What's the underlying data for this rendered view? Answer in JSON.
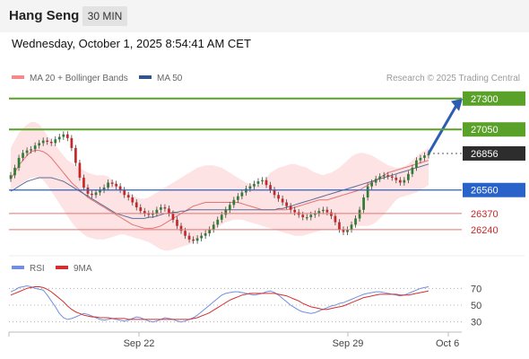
{
  "header": {
    "title": "Hang Seng",
    "interval": "30 MIN"
  },
  "datetime": "Wednesday, October 1, 2025 8:54:41 AM CET",
  "legend": {
    "ma20_bb": "MA 20 + Bollinger Bands",
    "ma50": "MA 50",
    "rsi": "RSI",
    "ma9": "9MA"
  },
  "copyright": "Research © 2025 Trading Central",
  "colors": {
    "up": "#2e7d32",
    "down": "#c62828",
    "resistance": "#5aa12a",
    "pivot": "#2962c8",
    "support": "#e57373",
    "bollinger": "#fde3e3",
    "ma20": "#e57373",
    "ma50": "#5b6e9a",
    "rsi": "#6f8fe0",
    "rsi_ma": "#d32f2f",
    "arrow": "#2b5db0"
  },
  "chart_data": [
    {
      "type": "candlestick",
      "ylim": [
        26050,
        27400
      ],
      "x_ticks": [
        "Sep 22",
        "Sep 29",
        "Oct 6"
      ],
      "levels": [
        {
          "value": 27300,
          "label": "27300",
          "kind": "resistance"
        },
        {
          "value": 27050,
          "label": "27050",
          "kind": "resistance"
        },
        {
          "value": 26856,
          "label": "26856",
          "kind": "last"
        },
        {
          "value": 26560,
          "label": "26560",
          "kind": "pivot"
        },
        {
          "value": 26370,
          "label": "26370",
          "kind": "support"
        },
        {
          "value": 26240,
          "label": "26240",
          "kind": "support"
        }
      ],
      "close": [
        26680,
        26740,
        26820,
        26860,
        26880,
        26890,
        26920,
        26940,
        26960,
        26950,
        26940,
        26970,
        26990,
        27010,
        26980,
        26900,
        26780,
        26660,
        26580,
        26530,
        26520,
        26540,
        26560,
        26580,
        26620,
        26610,
        26590,
        26560,
        26520,
        26500,
        26460,
        26420,
        26390,
        26370,
        26360,
        26370,
        26400,
        26420,
        26410,
        26370,
        26320,
        26270,
        26230,
        26190,
        26160,
        26150,
        26170,
        26190,
        26210,
        26240,
        26280,
        26320,
        26360,
        26400,
        26440,
        26480,
        26510,
        26540,
        26570,
        26590,
        26610,
        26630,
        26640,
        26600,
        26560,
        26520,
        26490,
        26460,
        26430,
        26400,
        26380,
        26360,
        26340,
        26340,
        26360,
        26370,
        26390,
        26400,
        26380,
        26350,
        26300,
        26240,
        26220,
        26240,
        26280,
        26330,
        26400,
        26500,
        26590,
        26620,
        26650,
        26670,
        26680,
        26670,
        26660,
        26640,
        26620,
        26640,
        26690,
        26740,
        26800,
        26820,
        26840,
        26856
      ],
      "bollinger_upper": [
        26900,
        26960,
        27020,
        27060,
        27090,
        27110,
        27110,
        27090,
        27050,
        27000,
        26960,
        26920,
        26880,
        26840,
        26800,
        26780,
        26760,
        26740,
        26720,
        26700,
        26690,
        26680,
        26680,
        26680,
        26670,
        26640,
        26610,
        26580,
        26560,
        26540,
        26520,
        26500,
        26490,
        26490,
        26500,
        26520,
        26540,
        26560,
        26580,
        26600,
        26620,
        26640,
        26660,
        26680,
        26700,
        26720,
        26740,
        26750,
        26760,
        26760,
        26760,
        26750,
        26740,
        26720,
        26700,
        26680,
        26660,
        26640,
        26620,
        26610,
        26600,
        26600,
        26620,
        26660,
        26700,
        26720,
        26740,
        26750,
        26760,
        26770,
        26770,
        26760,
        26750,
        26740,
        26720,
        26700,
        26690,
        26680,
        26690,
        26700,
        26720,
        26740,
        26770,
        26800,
        26830,
        26850,
        26860,
        26860,
        26850,
        26840,
        26820,
        26800,
        26780,
        26760,
        26750,
        26740,
        26740,
        26750,
        26770,
        26800,
        26830,
        26860,
        26880,
        26900
      ],
      "bollinger_lower": [
        26560,
        26580,
        26600,
        26620,
        26640,
        26660,
        26660,
        26660,
        26640,
        26600,
        26550,
        26500,
        26450,
        26400,
        26350,
        26300,
        26260,
        26230,
        26200,
        26180,
        26170,
        26160,
        26160,
        26160,
        26170,
        26180,
        26190,
        26200,
        26200,
        26190,
        26180,
        26170,
        26160,
        26150,
        26140,
        26120,
        26100,
        26080,
        26070,
        26070,
        26080,
        26090,
        26100,
        26110,
        26120,
        26140,
        26160,
        26180,
        26200,
        26220,
        26240,
        26260,
        26280,
        26300,
        26310,
        26320,
        26320,
        26320,
        26310,
        26300,
        26290,
        26280,
        26270,
        26260,
        26250,
        26240,
        26230,
        26220,
        26210,
        26200,
        26190,
        26190,
        26190,
        26200,
        26210,
        26220,
        26230,
        26240,
        26240,
        26240,
        26240,
        26240,
        26240,
        26250,
        26260,
        26270,
        26270,
        26270,
        26270,
        26280,
        26300,
        26330,
        26360,
        26400,
        26440,
        26480,
        26500,
        26510,
        26520,
        26530,
        26540,
        26560,
        26580,
        26600
      ],
      "ma20": [
        26650,
        26700,
        26760,
        26800,
        26840,
        26870,
        26880,
        26880,
        26870,
        26850,
        26820,
        26780,
        26740,
        26700,
        26660,
        26620,
        26590,
        26560,
        26530,
        26500,
        26480,
        26460,
        26440,
        26420,
        26400,
        26380,
        26360,
        26340,
        26320,
        26300,
        26280,
        26270,
        26260,
        26250,
        26250,
        26250,
        26260,
        26270,
        26290,
        26310,
        26330,
        26350,
        26370,
        26390,
        26410,
        26430,
        26440,
        26450,
        26460,
        26460,
        26460,
        26460,
        26460,
        26460,
        26460,
        26460,
        26460,
        26450,
        26440,
        26430,
        26420,
        26410,
        26400,
        26400,
        26400,
        26400,
        26400,
        26400,
        26400,
        26410,
        26420,
        26430,
        26440,
        26450,
        26460,
        26470,
        26480,
        26480,
        26480,
        26490,
        26500,
        26510,
        26520,
        26530,
        26540,
        26550,
        26560,
        26580,
        26600,
        26620,
        26640,
        26660,
        26680,
        26700,
        26710,
        26720,
        26730,
        26740,
        26750,
        26760,
        26770,
        26780,
        26790,
        26800
      ],
      "ma50": [
        26550,
        26570,
        26590,
        26610,
        26630,
        26640,
        26650,
        26660,
        26660,
        26660,
        26660,
        26650,
        26640,
        26630,
        26610,
        26590,
        26570,
        26550,
        26530,
        26510,
        26490,
        26470,
        26450,
        26430,
        26410,
        26390,
        26370,
        26360,
        26350,
        26340,
        26330,
        26330,
        26330,
        26330,
        26340,
        26340,
        26350,
        26360,
        26370,
        26370,
        26380,
        26380,
        26390,
        26390,
        26400,
        26400,
        26400,
        26400,
        26400,
        26400,
        26400,
        26400,
        26400,
        26400,
        26400,
        26400,
        26400,
        26400,
        26400,
        26400,
        26400,
        26400,
        26400,
        26400,
        26400,
        26400,
        26410,
        26410,
        26420,
        26430,
        26440,
        26450,
        26460,
        26470,
        26480,
        26490,
        26500,
        26510,
        26520,
        26530,
        26540,
        26550,
        26560,
        26570,
        26580,
        26590,
        26600,
        26610,
        26620,
        26630,
        26640,
        26650,
        26660,
        26670,
        26680,
        26690,
        26700,
        26710,
        26720,
        26730,
        26740,
        26750,
        26760,
        26770
      ]
    },
    {
      "type": "line",
      "ylim": [
        20,
        80
      ],
      "y_ticks": [
        70,
        50,
        30
      ],
      "series": [
        {
          "name": "RSI",
          "values": [
            66,
            68,
            71,
            72,
            73,
            72,
            70,
            69,
            68,
            62,
            55,
            48,
            40,
            35,
            33,
            34,
            36,
            38,
            40,
            39,
            37,
            35,
            33,
            32,
            33,
            34,
            33,
            32,
            31,
            32,
            34,
            36,
            35,
            33,
            31,
            30,
            31,
            33,
            35,
            34,
            33,
            31,
            30,
            31,
            33,
            35,
            38,
            42,
            46,
            50,
            54,
            58,
            62,
            64,
            65,
            66,
            66,
            65,
            64,
            63,
            62,
            63,
            64,
            66,
            67,
            65,
            62,
            58,
            54,
            50,
            47,
            44,
            42,
            41,
            40,
            41,
            43,
            45,
            47,
            49,
            50,
            52,
            53,
            55,
            57,
            59,
            61,
            63,
            64,
            65,
            66,
            66,
            65,
            64,
            63,
            62,
            61,
            62,
            64,
            66,
            68,
            70,
            71,
            72
          ]
        },
        {
          "name": "9MA",
          "values": [
            62,
            64,
            66,
            68,
            70,
            71,
            72,
            72,
            71,
            69,
            66,
            62,
            58,
            54,
            49,
            45,
            42,
            40,
            38,
            37,
            36,
            36,
            35,
            35,
            35,
            34,
            34,
            34,
            34,
            33,
            33,
            33,
            33,
            33,
            33,
            33,
            33,
            33,
            33,
            33,
            33,
            33,
            33,
            33,
            33,
            34,
            35,
            37,
            39,
            41,
            44,
            47,
            50,
            53,
            56,
            58,
            60,
            62,
            63,
            64,
            64,
            64,
            64,
            64,
            64,
            64,
            63,
            62,
            61,
            59,
            57,
            55,
            52,
            50,
            48,
            47,
            46,
            45,
            45,
            46,
            47,
            48,
            49,
            51,
            53,
            55,
            57,
            59,
            60,
            61,
            62,
            63,
            63,
            63,
            63,
            63,
            62,
            62,
            62,
            63,
            64,
            65,
            66,
            67
          ]
        }
      ]
    }
  ]
}
